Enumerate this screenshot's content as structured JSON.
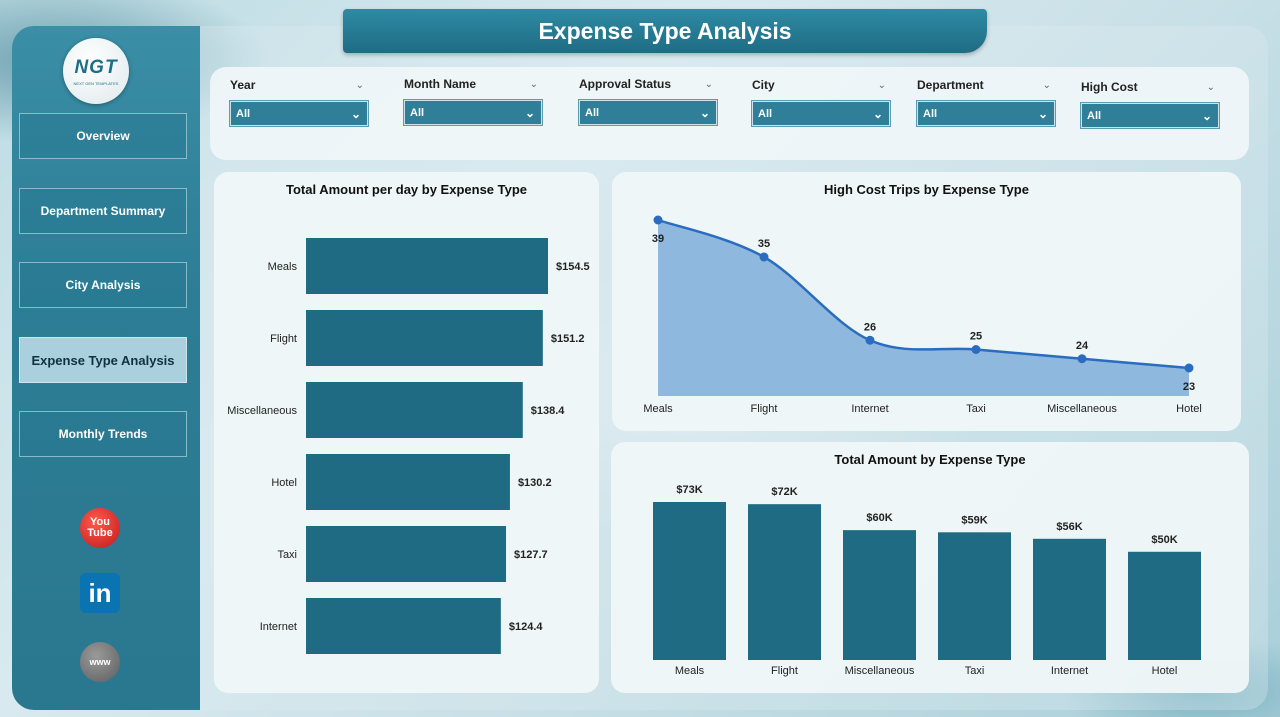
{
  "page_title": "Expense Type Analysis",
  "logo": {
    "text": "NGT",
    "subtitle": "NEXT GEN TEMPLATES"
  },
  "nav": [
    {
      "label": "Overview",
      "active": false
    },
    {
      "label": "Department Summary",
      "active": false
    },
    {
      "label": "City Analysis",
      "active": false
    },
    {
      "label": "Expense Type Analysis",
      "active": true
    },
    {
      "label": "Monthly Trends",
      "active": false
    }
  ],
  "social": {
    "youtube_label": "You Tube",
    "linkedin_label": "in",
    "web_label": "www"
  },
  "filters": [
    {
      "label": "Year",
      "value": "All"
    },
    {
      "label": "Month Name",
      "value": "All"
    },
    {
      "label": "Approval Status",
      "value": "All"
    },
    {
      "label": "City",
      "value": "All"
    },
    {
      "label": "Department",
      "value": "All"
    },
    {
      "label": "High Cost",
      "value": "All"
    }
  ],
  "colors": {
    "bar": "#1f6b83",
    "area_fill": "#8fb8de",
    "area_line": "#2a6cc0",
    "accent": "#2f7f98"
  },
  "chart_data": [
    {
      "type": "bar",
      "orientation": "horizontal",
      "title": "Total Amount per day by Expense Type",
      "categories": [
        "Meals",
        "Flight",
        "Miscellaneous",
        "Hotel",
        "Taxi",
        "Internet"
      ],
      "values": [
        154.5,
        151.2,
        138.4,
        130.2,
        127.7,
        124.4
      ],
      "labels": [
        "$154.5",
        "$151.2",
        "$138.4",
        "$130.2",
        "$127.7",
        "$124.4"
      ],
      "grid": false
    },
    {
      "type": "area",
      "title": "High Cost Trips by Expense Type",
      "categories": [
        "Meals",
        "Flight",
        "Internet",
        "Taxi",
        "Miscellaneous",
        "Hotel"
      ],
      "values": [
        39,
        35,
        26,
        25,
        24,
        23
      ],
      "grid": false
    },
    {
      "type": "bar",
      "orientation": "vertical",
      "title": "Total Amount by Expense Type",
      "categories": [
        "Meals",
        "Flight",
        "Miscellaneous",
        "Taxi",
        "Internet",
        "Hotel"
      ],
      "values": [
        73,
        72,
        60,
        59,
        56,
        50
      ],
      "labels": [
        "$73K",
        "$72K",
        "$60K",
        "$59K",
        "$56K",
        "$50K"
      ],
      "grid": false
    }
  ]
}
